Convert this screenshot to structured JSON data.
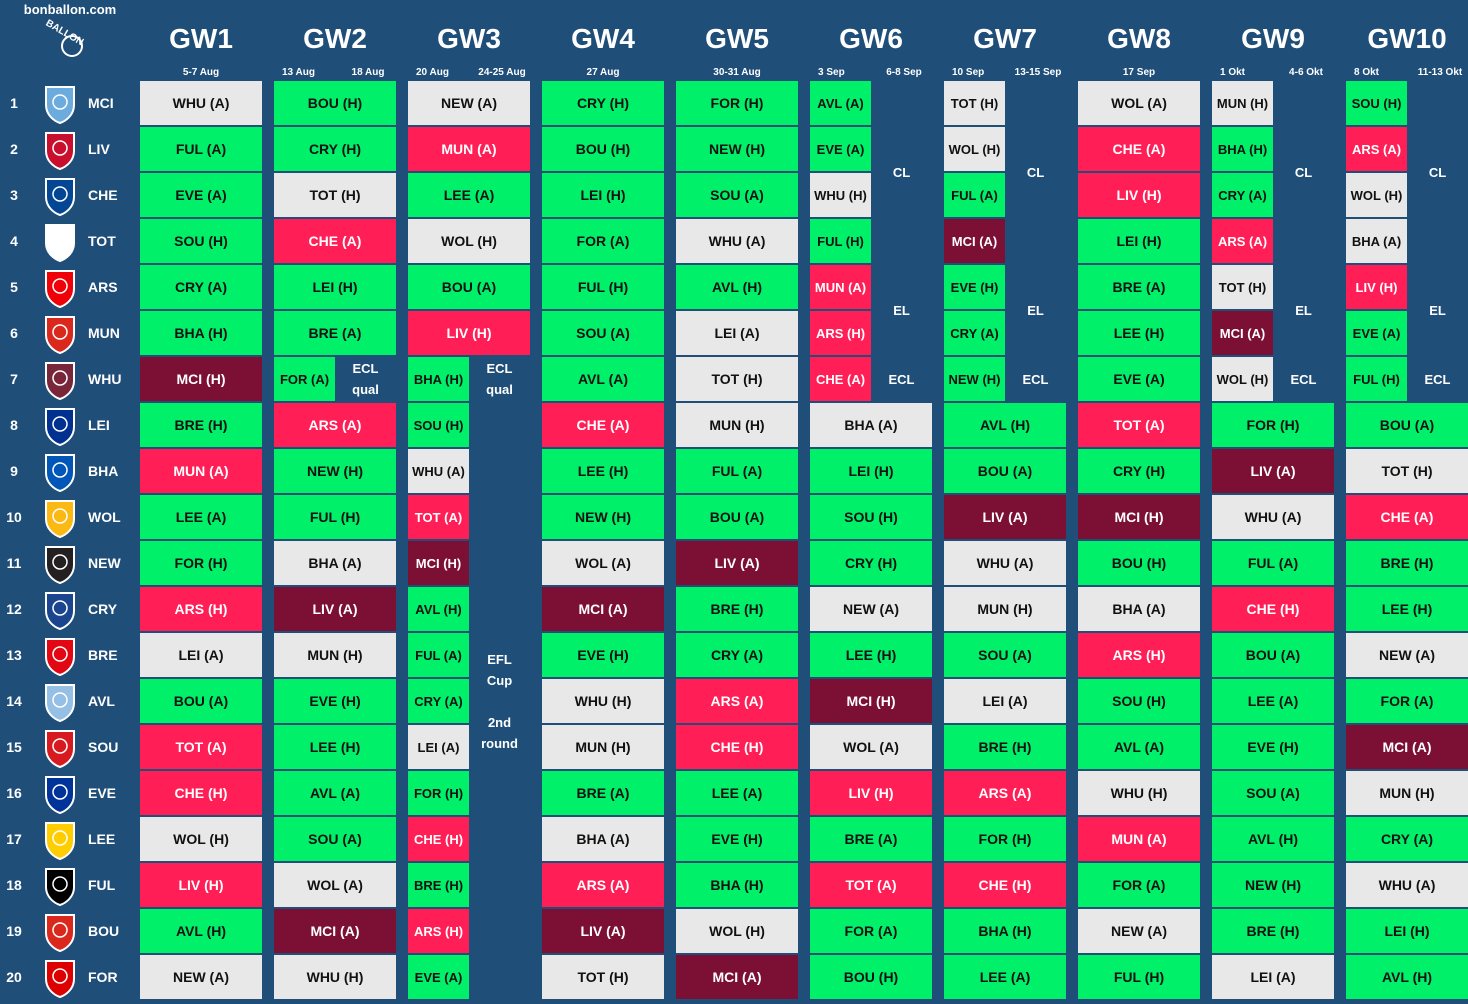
{
  "site": "bonballon.com",
  "logo_text": "BALLON",
  "colors": {
    "bg": "#1f4e79",
    "green": "#00f06a",
    "grey": "#e8e8e8",
    "red": "#ff1e56",
    "maroon": "#7b1034"
  },
  "row_numbers": [
    "1",
    "2",
    "3",
    "4",
    "5",
    "6",
    "7",
    "8",
    "9",
    "10",
    "11",
    "12",
    "13",
    "14",
    "15",
    "16",
    "17",
    "18",
    "19",
    "20"
  ],
  "teams": [
    {
      "code": "MCI",
      "badge": "man-city-badge",
      "color": "#6cabdd"
    },
    {
      "code": "LIV",
      "badge": "liverpool-badge",
      "color": "#c8102e"
    },
    {
      "code": "CHE",
      "badge": "chelsea-badge",
      "color": "#034694"
    },
    {
      "code": "TOT",
      "badge": "tottenham-badge",
      "color": "#ffffff"
    },
    {
      "code": "ARS",
      "badge": "arsenal-badge",
      "color": "#ef0107"
    },
    {
      "code": "MUN",
      "badge": "man-united-badge",
      "color": "#da291c"
    },
    {
      "code": "WHU",
      "badge": "west-ham-badge",
      "color": "#7a263a"
    },
    {
      "code": "LEI",
      "badge": "leicester-badge",
      "color": "#003090"
    },
    {
      "code": "BHA",
      "badge": "brighton-badge",
      "color": "#0057b8"
    },
    {
      "code": "WOL",
      "badge": "wolves-badge",
      "color": "#fdb913"
    },
    {
      "code": "NEW",
      "badge": "newcastle-badge",
      "color": "#241f20"
    },
    {
      "code": "CRY",
      "badge": "crystal-palace-badge",
      "color": "#1b458f"
    },
    {
      "code": "BRE",
      "badge": "brentford-badge",
      "color": "#e30613"
    },
    {
      "code": "AVL",
      "badge": "aston-villa-badge",
      "color": "#95bfe5"
    },
    {
      "code": "SOU",
      "badge": "southampton-badge",
      "color": "#d71920"
    },
    {
      "code": "EVE",
      "badge": "everton-badge",
      "color": "#003399"
    },
    {
      "code": "LEE",
      "badge": "leeds-badge",
      "color": "#ffcd00"
    },
    {
      "code": "FUL",
      "badge": "fulham-badge",
      "color": "#000000"
    },
    {
      "code": "BOU",
      "badge": "bournemouth-badge",
      "color": "#da291c"
    },
    {
      "code": "FOR",
      "badge": "forest-badge",
      "color": "#dd0000"
    }
  ],
  "gameweeks": [
    {
      "title": "GW1",
      "dates": [
        "5-7 Aug"
      ]
    },
    {
      "title": "GW2",
      "dates": [
        "13 Aug",
        "18 Aug"
      ]
    },
    {
      "title": "GW3",
      "dates": [
        "20 Aug",
        "24-25 Aug"
      ]
    },
    {
      "title": "GW4",
      "dates": [
        "27 Aug"
      ]
    },
    {
      "title": "GW5",
      "dates": [
        "30-31 Aug"
      ]
    },
    {
      "title": "GW6",
      "dates": [
        "3 Sep",
        "6-8 Sep"
      ]
    },
    {
      "title": "GW7",
      "dates": [
        "10 Sep",
        "13-15 Sep"
      ]
    },
    {
      "title": "GW8",
      "dates": [
        "17 Sep"
      ]
    },
    {
      "title": "GW9",
      "dates": [
        "1 Okt",
        "4-6 Okt"
      ]
    },
    {
      "title": "GW10",
      "dates": [
        "8 Okt",
        "11-13 Okt"
      ]
    }
  ],
  "fixtures": [
    [
      {
        "t": "WHU (A)",
        "c": "l"
      },
      {
        "t": "FUL (A)",
        "c": "g"
      },
      {
        "t": "EVE (A)",
        "c": "g"
      },
      {
        "t": "SOU (H)",
        "c": "g"
      },
      {
        "t": "CRY (A)",
        "c": "g"
      },
      {
        "t": "BHA (H)",
        "c": "g"
      },
      {
        "t": "MCI (H)",
        "c": "m"
      },
      {
        "t": "BRE (H)",
        "c": "g"
      },
      {
        "t": "MUN (A)",
        "c": "r"
      },
      {
        "t": "LEE (A)",
        "c": "g"
      },
      {
        "t": "FOR (H)",
        "c": "g"
      },
      {
        "t": "ARS (H)",
        "c": "r"
      },
      {
        "t": "LEI (A)",
        "c": "l"
      },
      {
        "t": "BOU (A)",
        "c": "g"
      },
      {
        "t": "TOT (A)",
        "c": "r"
      },
      {
        "t": "CHE (H)",
        "c": "r"
      },
      {
        "t": "WOL (H)",
        "c": "l"
      },
      {
        "t": "LIV (H)",
        "c": "r"
      },
      {
        "t": "AVL (H)",
        "c": "g"
      },
      {
        "t": "NEW (A)",
        "c": "l"
      }
    ],
    [
      {
        "t": "BOU (H)",
        "c": "g"
      },
      {
        "t": "CRY (H)",
        "c": "g"
      },
      {
        "t": "TOT (H)",
        "c": "l"
      },
      {
        "t": "CHE (A)",
        "c": "r"
      },
      {
        "t": "LEI (H)",
        "c": "g"
      },
      {
        "t": "BRE (A)",
        "c": "g"
      },
      {
        "t": "FOR (A)",
        "c": "g"
      },
      {
        "t": "ARS (A)",
        "c": "r"
      },
      {
        "t": "NEW (H)",
        "c": "g"
      },
      {
        "t": "FUL (H)",
        "c": "g"
      },
      {
        "t": "BHA (A)",
        "c": "l"
      },
      {
        "t": "LIV (A)",
        "c": "m"
      },
      {
        "t": "MUN (H)",
        "c": "l"
      },
      {
        "t": "EVE (H)",
        "c": "g"
      },
      {
        "t": "LEE (H)",
        "c": "g"
      },
      {
        "t": "AVL (A)",
        "c": "g"
      },
      {
        "t": "SOU (A)",
        "c": "g"
      },
      {
        "t": "WOL (A)",
        "c": "l"
      },
      {
        "t": "MCI (A)",
        "c": "m"
      },
      {
        "t": "WHU (H)",
        "c": "l"
      }
    ],
    [
      {
        "t": "NEW (A)",
        "c": "l"
      },
      {
        "t": "MUN (A)",
        "c": "r"
      },
      {
        "t": "LEE (A)",
        "c": "g"
      },
      {
        "t": "WOL (H)",
        "c": "l"
      },
      {
        "t": "BOU (A)",
        "c": "g"
      },
      {
        "t": "LIV (H)",
        "c": "r"
      },
      {
        "t": "BHA (H)",
        "c": "g"
      },
      {
        "t": "SOU (H)",
        "c": "g"
      },
      {
        "t": "WHU (A)",
        "c": "l"
      },
      {
        "t": "TOT (A)",
        "c": "r"
      },
      {
        "t": "MCI (H)",
        "c": "m"
      },
      {
        "t": "AVL (H)",
        "c": "g"
      },
      {
        "t": "FUL (A)",
        "c": "g"
      },
      {
        "t": "CRY (A)",
        "c": "g"
      },
      {
        "t": "LEI (A)",
        "c": "l"
      },
      {
        "t": "FOR (H)",
        "c": "g"
      },
      {
        "t": "CHE (H)",
        "c": "r"
      },
      {
        "t": "BRE (H)",
        "c": "g"
      },
      {
        "t": "ARS (H)",
        "c": "r"
      },
      {
        "t": "EVE (A)",
        "c": "g"
      }
    ],
    [
      {
        "t": "CRY (H)",
        "c": "g"
      },
      {
        "t": "BOU (H)",
        "c": "g"
      },
      {
        "t": "LEI (H)",
        "c": "g"
      },
      {
        "t": "FOR (A)",
        "c": "g"
      },
      {
        "t": "FUL (H)",
        "c": "g"
      },
      {
        "t": "SOU (A)",
        "c": "g"
      },
      {
        "t": "AVL (A)",
        "c": "g"
      },
      {
        "t": "CHE (A)",
        "c": "r"
      },
      {
        "t": "LEE (H)",
        "c": "g"
      },
      {
        "t": "NEW (H)",
        "c": "g"
      },
      {
        "t": "WOL (A)",
        "c": "l"
      },
      {
        "t": "MCI (A)",
        "c": "m"
      },
      {
        "t": "EVE (H)",
        "c": "g"
      },
      {
        "t": "WHU (H)",
        "c": "l"
      },
      {
        "t": "MUN (H)",
        "c": "l"
      },
      {
        "t": "BRE (A)",
        "c": "g"
      },
      {
        "t": "BHA (A)",
        "c": "l"
      },
      {
        "t": "ARS (A)",
        "c": "r"
      },
      {
        "t": "LIV (A)",
        "c": "m"
      },
      {
        "t": "TOT (H)",
        "c": "l"
      }
    ],
    [
      {
        "t": "FOR (H)",
        "c": "g"
      },
      {
        "t": "NEW (H)",
        "c": "g"
      },
      {
        "t": "SOU (A)",
        "c": "g"
      },
      {
        "t": "WHU (A)",
        "c": "l"
      },
      {
        "t": "AVL (H)",
        "c": "g"
      },
      {
        "t": "LEI (A)",
        "c": "l"
      },
      {
        "t": "TOT (H)",
        "c": "l"
      },
      {
        "t": "MUN (H)",
        "c": "l"
      },
      {
        "t": "FUL (A)",
        "c": "g"
      },
      {
        "t": "BOU (A)",
        "c": "g"
      },
      {
        "t": "LIV (A)",
        "c": "m"
      },
      {
        "t": "BRE (H)",
        "c": "g"
      },
      {
        "t": "CRY (A)",
        "c": "g"
      },
      {
        "t": "ARS (A)",
        "c": "r"
      },
      {
        "t": "CHE (H)",
        "c": "r"
      },
      {
        "t": "LEE (A)",
        "c": "g"
      },
      {
        "t": "EVE (H)",
        "c": "g"
      },
      {
        "t": "BHA (H)",
        "c": "g"
      },
      {
        "t": "WOL (H)",
        "c": "l"
      },
      {
        "t": "MCI (A)",
        "c": "m"
      }
    ],
    [
      {
        "t": "AVL (A)",
        "c": "g"
      },
      {
        "t": "EVE (A)",
        "c": "g"
      },
      {
        "t": "WHU (H)",
        "c": "l"
      },
      {
        "t": "FUL (H)",
        "c": "g"
      },
      {
        "t": "MUN (A)",
        "c": "r"
      },
      {
        "t": "ARS (H)",
        "c": "r"
      },
      {
        "t": "CHE (A)",
        "c": "r"
      },
      {
        "t": "BHA (A)",
        "c": "l"
      },
      {
        "t": "LEI (H)",
        "c": "g"
      },
      {
        "t": "SOU (H)",
        "c": "g"
      },
      {
        "t": "CRY (H)",
        "c": "g"
      },
      {
        "t": "NEW (A)",
        "c": "l"
      },
      {
        "t": "LEE (H)",
        "c": "g"
      },
      {
        "t": "MCI (H)",
        "c": "m"
      },
      {
        "t": "WOL (A)",
        "c": "l"
      },
      {
        "t": "LIV (H)",
        "c": "r"
      },
      {
        "t": "BRE (A)",
        "c": "g"
      },
      {
        "t": "TOT (A)",
        "c": "r"
      },
      {
        "t": "FOR (A)",
        "c": "g"
      },
      {
        "t": "BOU (H)",
        "c": "g"
      }
    ],
    [
      {
        "t": "TOT (H)",
        "c": "l"
      },
      {
        "t": "WOL (H)",
        "c": "l"
      },
      {
        "t": "FUL (A)",
        "c": "g"
      },
      {
        "t": "MCI (A)",
        "c": "m"
      },
      {
        "t": "EVE (H)",
        "c": "g"
      },
      {
        "t": "CRY (A)",
        "c": "g"
      },
      {
        "t": "NEW (H)",
        "c": "g"
      },
      {
        "t": "AVL (H)",
        "c": "g"
      },
      {
        "t": "BOU (A)",
        "c": "g"
      },
      {
        "t": "LIV (A)",
        "c": "m"
      },
      {
        "t": "WHU (A)",
        "c": "l"
      },
      {
        "t": "MUN (H)",
        "c": "l"
      },
      {
        "t": "SOU (A)",
        "c": "g"
      },
      {
        "t": "LEI (A)",
        "c": "l"
      },
      {
        "t": "BRE (H)",
        "c": "g"
      },
      {
        "t": "ARS (A)",
        "c": "r"
      },
      {
        "t": "FOR (H)",
        "c": "g"
      },
      {
        "t": "CHE (H)",
        "c": "r"
      },
      {
        "t": "BHA (H)",
        "c": "g"
      },
      {
        "t": "LEE (A)",
        "c": "g"
      }
    ],
    [
      {
        "t": "WOL (A)",
        "c": "l"
      },
      {
        "t": "CHE (A)",
        "c": "r"
      },
      {
        "t": "LIV (H)",
        "c": "r"
      },
      {
        "t": "LEI (H)",
        "c": "g"
      },
      {
        "t": "BRE (A)",
        "c": "g"
      },
      {
        "t": "LEE (H)",
        "c": "g"
      },
      {
        "t": "EVE (A)",
        "c": "g"
      },
      {
        "t": "TOT (A)",
        "c": "r"
      },
      {
        "t": "CRY (H)",
        "c": "g"
      },
      {
        "t": "MCI (H)",
        "c": "m"
      },
      {
        "t": "BOU (H)",
        "c": "g"
      },
      {
        "t": "BHA (A)",
        "c": "l"
      },
      {
        "t": "ARS (H)",
        "c": "r"
      },
      {
        "t": "SOU (H)",
        "c": "g"
      },
      {
        "t": "AVL (A)",
        "c": "g"
      },
      {
        "t": "WHU (H)",
        "c": "l"
      },
      {
        "t": "MUN (A)",
        "c": "r"
      },
      {
        "t": "FOR (A)",
        "c": "g"
      },
      {
        "t": "NEW (A)",
        "c": "l"
      },
      {
        "t": "FUL (H)",
        "c": "g"
      }
    ],
    [
      {
        "t": "MUN (H)",
        "c": "l"
      },
      {
        "t": "BHA (H)",
        "c": "g"
      },
      {
        "t": "CRY (A)",
        "c": "g"
      },
      {
        "t": "ARS (A)",
        "c": "r"
      },
      {
        "t": "TOT (H)",
        "c": "l"
      },
      {
        "t": "MCI (A)",
        "c": "m"
      },
      {
        "t": "WOL (H)",
        "c": "l"
      },
      {
        "t": "FOR (H)",
        "c": "g"
      },
      {
        "t": "LIV (A)",
        "c": "m"
      },
      {
        "t": "WHU (A)",
        "c": "l"
      },
      {
        "t": "FUL (A)",
        "c": "g"
      },
      {
        "t": "CHE (H)",
        "c": "r"
      },
      {
        "t": "BOU (A)",
        "c": "g"
      },
      {
        "t": "LEE (A)",
        "c": "g"
      },
      {
        "t": "EVE (H)",
        "c": "g"
      },
      {
        "t": "SOU (A)",
        "c": "g"
      },
      {
        "t": "AVL (H)",
        "c": "g"
      },
      {
        "t": "NEW (H)",
        "c": "g"
      },
      {
        "t": "BRE (H)",
        "c": "g"
      },
      {
        "t": "LEI (A)",
        "c": "l"
      }
    ],
    [
      {
        "t": "SOU (H)",
        "c": "g"
      },
      {
        "t": "ARS (A)",
        "c": "r"
      },
      {
        "t": "WOL (H)",
        "c": "l"
      },
      {
        "t": "BHA (A)",
        "c": "l"
      },
      {
        "t": "LIV (H)",
        "c": "r"
      },
      {
        "t": "EVE (A)",
        "c": "g"
      },
      {
        "t": "FUL (H)",
        "c": "g"
      },
      {
        "t": "BOU (A)",
        "c": "g"
      },
      {
        "t": "TOT (H)",
        "c": "l"
      },
      {
        "t": "CHE (A)",
        "c": "r"
      },
      {
        "t": "BRE (H)",
        "c": "g"
      },
      {
        "t": "LEE (H)",
        "c": "g"
      },
      {
        "t": "NEW (A)",
        "c": "l"
      },
      {
        "t": "FOR (A)",
        "c": "g"
      },
      {
        "t": "MCI (A)",
        "c": "m"
      },
      {
        "t": "MUN (H)",
        "c": "l"
      },
      {
        "t": "CRY (A)",
        "c": "g"
      },
      {
        "t": "WHU (A)",
        "c": "l"
      },
      {
        "t": "LEI (H)",
        "c": "g"
      },
      {
        "t": "AVL (H)",
        "c": "g"
      }
    ]
  ],
  "blocks": [
    {
      "gw": 1,
      "col": "R",
      "r0": 6,
      "r1": 6,
      "lines": [
        "ECL",
        "qual"
      ]
    },
    {
      "gw": 2,
      "col": "R",
      "r0": 6,
      "r1": 6,
      "lines": [
        "ECL",
        "qual"
      ]
    },
    {
      "gw": 2,
      "col": "R",
      "r0": 7,
      "r1": 19,
      "lines": [
        "EFL",
        "Cup",
        "",
        "2nd",
        "round"
      ]
    },
    {
      "gw": 5,
      "col": "R",
      "r0": 0,
      "r1": 3,
      "lines": [
        "CL"
      ]
    },
    {
      "gw": 5,
      "col": "R",
      "r0": 4,
      "r1": 5,
      "lines": [
        "EL"
      ]
    },
    {
      "gw": 5,
      "col": "R",
      "r0": 6,
      "r1": 6,
      "lines": [
        "ECL"
      ]
    },
    {
      "gw": 6,
      "col": "R",
      "r0": 0,
      "r1": 3,
      "lines": [
        "CL"
      ]
    },
    {
      "gw": 6,
      "col": "R",
      "r0": 4,
      "r1": 5,
      "lines": [
        "EL"
      ]
    },
    {
      "gw": 6,
      "col": "R",
      "r0": 6,
      "r1": 6,
      "lines": [
        "ECL"
      ]
    },
    {
      "gw": 8,
      "col": "R",
      "r0": 0,
      "r1": 3,
      "lines": [
        "CL"
      ]
    },
    {
      "gw": 8,
      "col": "R",
      "r0": 4,
      "r1": 5,
      "lines": [
        "EL"
      ]
    },
    {
      "gw": 8,
      "col": "R",
      "r0": 6,
      "r1": 6,
      "lines": [
        "ECL"
      ]
    },
    {
      "gw": 9,
      "col": "R",
      "r0": 0,
      "r1": 3,
      "lines": [
        "CL"
      ]
    },
    {
      "gw": 9,
      "col": "R",
      "r0": 4,
      "r1": 5,
      "lines": [
        "EL"
      ]
    },
    {
      "gw": 9,
      "col": "R",
      "r0": 6,
      "r1": 6,
      "lines": [
        "ECL"
      ]
    }
  ],
  "split_rules": [
    {
      "gw": 1,
      "r0": 6,
      "r1": 6
    },
    {
      "gw": 2,
      "r0": 0,
      "r1": 19,
      "full_first": [
        0,
        1,
        2,
        3,
        4,
        5
      ]
    },
    {
      "gw": 5,
      "r0": 0,
      "r1": 6
    },
    {
      "gw": 6,
      "r0": 0,
      "r1": 6
    },
    {
      "gw": 8,
      "r0": 0,
      "r1": 6
    },
    {
      "gw": 9,
      "r0": 0,
      "r1": 6
    }
  ]
}
